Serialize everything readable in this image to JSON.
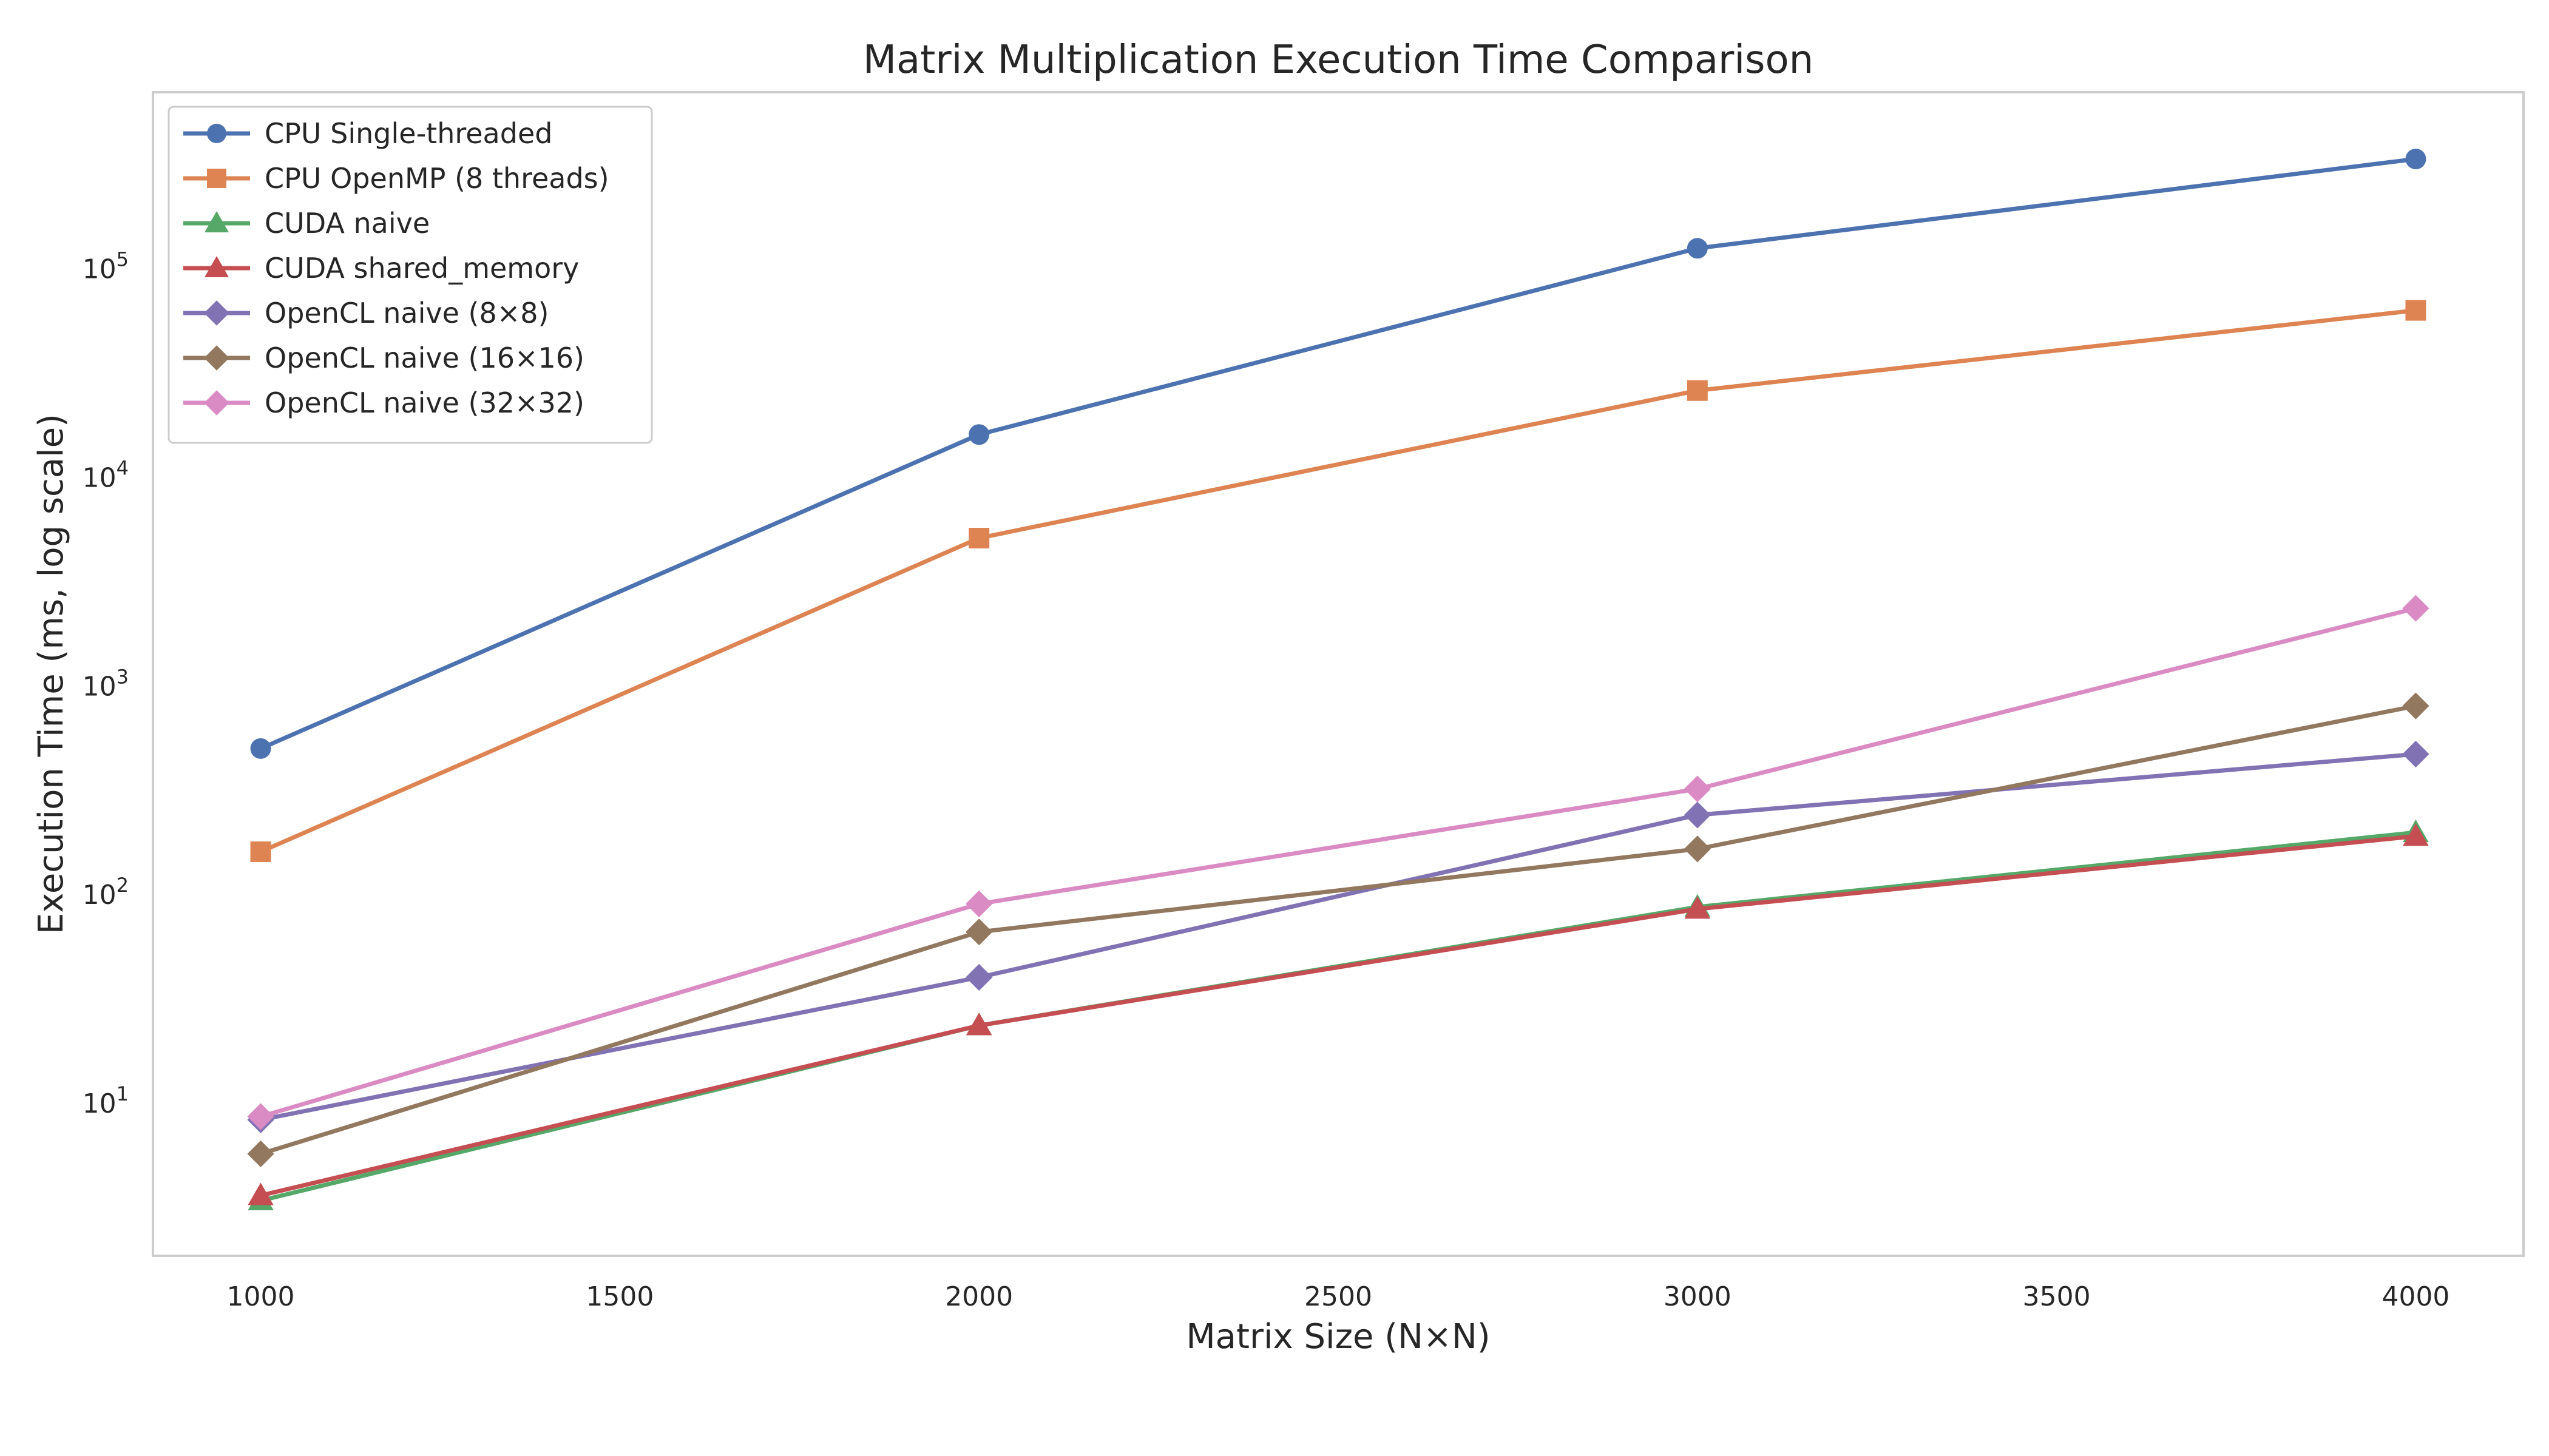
{
  "chart_data": {
    "type": "line",
    "title": "Matrix Multiplication Execution Time Comparison",
    "xlabel": "Matrix Size (N×N)",
    "ylabel": "Execution Time (ms, log scale)",
    "x": [
      1000,
      2000,
      3000,
      4000
    ],
    "xlim": [
      850,
      4150
    ],
    "xticks": [
      1000,
      1500,
      2000,
      2500,
      3000,
      3500,
      4000
    ],
    "yscale": "log",
    "ylim": [
      1.85,
      700000
    ],
    "yticks": [
      {
        "value": 10,
        "base": "10",
        "exp": "1"
      },
      {
        "value": 100,
        "base": "10",
        "exp": "2"
      },
      {
        "value": 1000,
        "base": "10",
        "exp": "3"
      },
      {
        "value": 10000,
        "base": "10",
        "exp": "4"
      },
      {
        "value": 100000,
        "base": "10",
        "exp": "5"
      }
    ],
    "grid": false,
    "legend_position": "top-left",
    "series": [
      {
        "name": "CPU Single-threaded",
        "values": [
          500,
          16000,
          125000,
          335000
        ],
        "color": "#4c72b0",
        "marker": "circle"
      },
      {
        "name": "CPU OpenMP (8 threads)",
        "values": [
          160,
          5100,
          26000,
          63000
        ],
        "color": "#dd8452",
        "marker": "square"
      },
      {
        "name": "CUDA naive",
        "values": [
          3.4,
          23.5,
          87,
          198
        ],
        "color": "#55a868",
        "marker": "triangle"
      },
      {
        "name": "CUDA shared_memory",
        "values": [
          3.6,
          23.5,
          85,
          190
        ],
        "color": "#c44e52",
        "marker": "triangle"
      },
      {
        "name": "OpenCL naive (8×8)",
        "values": [
          8.3,
          40,
          240,
          470
        ],
        "color": "#8172b3",
        "marker": "diamond"
      },
      {
        "name": "OpenCL naive (16×16)",
        "values": [
          5.7,
          66,
          165,
          800
        ],
        "color": "#937860",
        "marker": "diamond"
      },
      {
        "name": "OpenCL naive (32×32)",
        "values": [
          8.6,
          90,
          320,
          2350
        ],
        "color": "#da8bc3",
        "marker": "diamond"
      }
    ]
  }
}
